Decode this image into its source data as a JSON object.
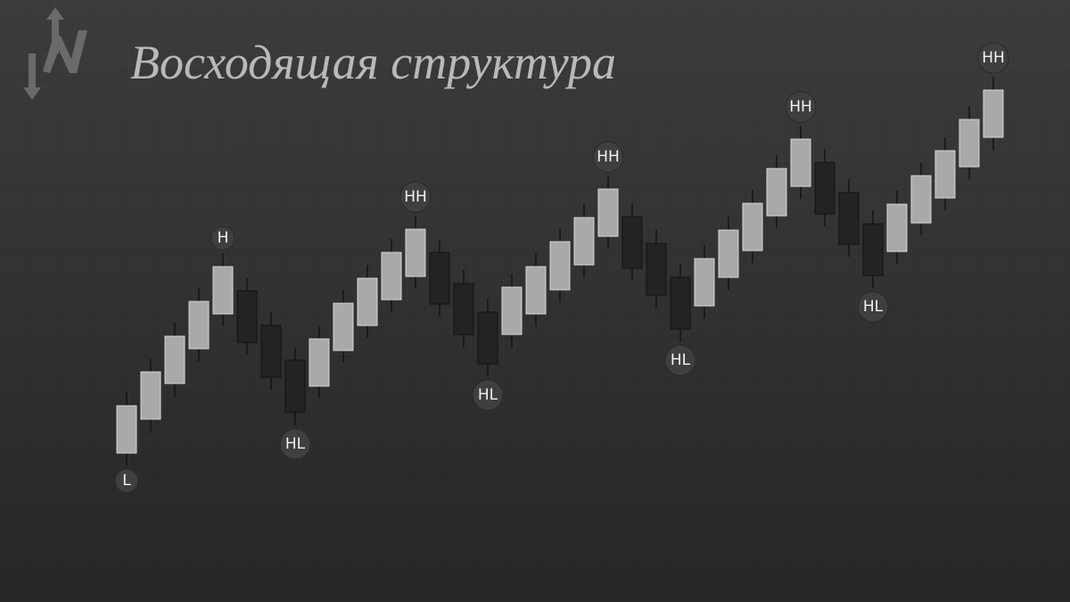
{
  "chart_data": {
    "type": "candlestick",
    "title": "Восходящая структура",
    "ylim": [
      0,
      675
    ],
    "open": [
      167,
      205,
      245,
      284,
      323,
      349,
      310,
      271,
      242,
      282,
      310,
      339,
      365,
      392,
      357,
      325,
      300,
      323,
      350,
      378,
      410,
      432,
      402,
      364,
      332,
      364,
      394,
      433,
      466,
      493,
      459,
      424,
      393,
      425,
      453,
      488,
      521
    ],
    "high": [
      235,
      273,
      313,
      352,
      391,
      363,
      325,
      285,
      310,
      350,
      378,
      407,
      433,
      406,
      372,
      340,
      368,
      391,
      419,
      446,
      478,
      447,
      417,
      379,
      400,
      432,
      462,
      501,
      534,
      508,
      474,
      439,
      461,
      493,
      521,
      556,
      589
    ],
    "low": [
      153,
      190,
      230,
      270,
      309,
      277,
      238,
      198,
      228,
      268,
      296,
      325,
      352,
      320,
      286,
      253,
      286,
      309,
      336,
      364,
      396,
      360,
      330,
      292,
      318,
      350,
      380,
      419,
      452,
      421,
      387,
      352,
      379,
      411,
      439,
      474,
      507
    ],
    "close": [
      220,
      258,
      298,
      337,
      376,
      291,
      252,
      213,
      295,
      335,
      363,
      392,
      418,
      334,
      300,
      267,
      353,
      376,
      404,
      431,
      463,
      374,
      344,
      306,
      385,
      417,
      447,
      486,
      519,
      435,
      401,
      366,
      446,
      478,
      506,
      541,
      574
    ],
    "point_labels": [
      "L",
      null,
      null,
      null,
      "H",
      null,
      null,
      "HL",
      null,
      null,
      null,
      null,
      "HH",
      null,
      null,
      "HL",
      null,
      null,
      null,
      null,
      "HH",
      null,
      null,
      "HL",
      null,
      null,
      null,
      null,
      "HH",
      null,
      null,
      "HL",
      null,
      null,
      null,
      null,
      "HH"
    ],
    "up_color": "#a9a9a9",
    "down_color": "#232323"
  }
}
